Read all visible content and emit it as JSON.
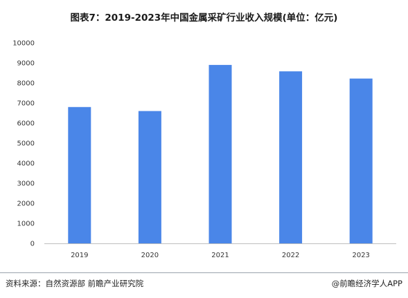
{
  "chart_data": {
    "type": "bar",
    "title": "图表7：2019-2023年中国金属采矿行业收入规模(单位：亿元)",
    "categories": [
      "2019",
      "2020",
      "2021",
      "2022",
      "2023"
    ],
    "values": [
      6800,
      6600,
      8900,
      8580,
      8220
    ],
    "ylim": [
      0,
      10000
    ],
    "yticks": [
      0,
      1000,
      2000,
      3000,
      4000,
      5000,
      6000,
      7000,
      8000,
      9000,
      10000
    ],
    "bar_color": "#4a86e8",
    "grid": false,
    "legend": "none"
  },
  "footer": {
    "source": "资料来源：自然资源部 前瞻产业研究院",
    "brand": "@前瞻经济学人APP"
  }
}
